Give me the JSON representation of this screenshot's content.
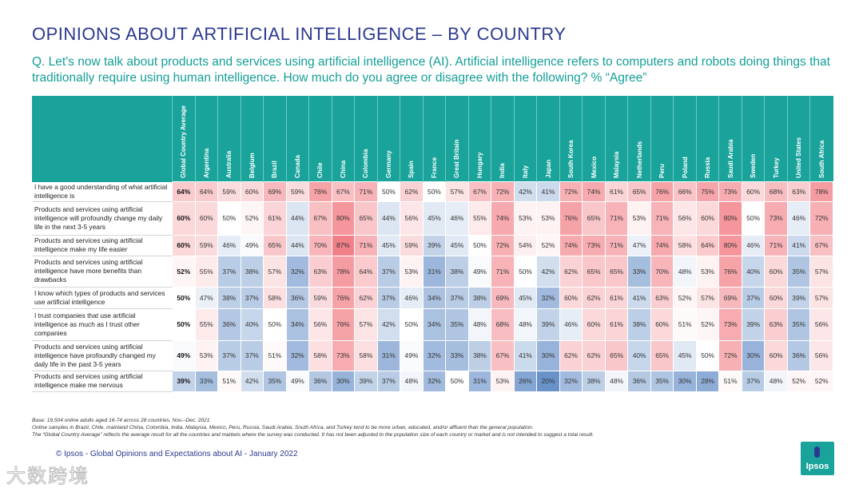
{
  "title": "OPINIONS ABOUT ARTIFICIAL INTELLIGENCE – BY COUNTRY",
  "question": "Q. Let's now talk about products and services using artificial intelligence (AI). Artificial intelligence refers to computers and robots doing things that traditionally require using human intelligence. How much do you agree or disagree with the following? % “Agree”",
  "columns": [
    "Global Country Average",
    "Argentina",
    "Australia",
    "Belgium",
    "Brazil",
    "Canada",
    "Chile",
    "China",
    "Colombia",
    "Germany",
    "Spain",
    "France",
    "Great Britain",
    "Hungary",
    "India",
    "Italy",
    "Japan",
    "South Korea",
    "Mexico",
    "Malaysia",
    "Netherlands",
    "Peru",
    "Poland",
    "Russia",
    "Saudi Arabia",
    "Sweden",
    "Turkey",
    "United States",
    "South Africa"
  ],
  "rows": [
    {
      "label": "I have a good understanding of what artificial intelligence is",
      "values": [
        64,
        64,
        59,
        60,
        69,
        59,
        76,
        67,
        71,
        50,
        62,
        50,
        57,
        67,
        72,
        42,
        41,
        72,
        74,
        61,
        65,
        76,
        66,
        75,
        73,
        60,
        68,
        63,
        78
      ]
    },
    {
      "label": "Products and services using artificial intelligence will profoundly change my daily life in the next 3-5 years",
      "values": [
        60,
        60,
        50,
        52,
        61,
        44,
        67,
        80,
        65,
        44,
        56,
        45,
        46,
        55,
        74,
        53,
        53,
        76,
        65,
        71,
        53,
        71,
        56,
        60,
        80,
        50,
        73,
        46,
        72
      ]
    },
    {
      "label": "Products and services using artificial intelligence make my life easier",
      "values": [
        60,
        59,
        46,
        49,
        65,
        44,
        70,
        87,
        71,
        45,
        59,
        39,
        45,
        50,
        72,
        54,
        52,
        74,
        73,
        71,
        47,
        74,
        58,
        64,
        80,
        46,
        71,
        41,
        67
      ]
    },
    {
      "label": "Products and services using artificial intelligence have more benefits than drawbacks",
      "values": [
        52,
        55,
        37,
        38,
        57,
        32,
        63,
        78,
        64,
        37,
        53,
        31,
        38,
        49,
        71,
        50,
        42,
        62,
        65,
        65,
        33,
        70,
        48,
        53,
        76,
        40,
        60,
        35,
        57
      ]
    },
    {
      "label": "I know which types of products and services use artificial intelligence",
      "values": [
        50,
        47,
        38,
        37,
        58,
        36,
        59,
        76,
        62,
        37,
        46,
        34,
        37,
        38,
        69,
        45,
        32,
        60,
        62,
        61,
        41,
        63,
        52,
        57,
        69,
        37,
        60,
        39,
        57
      ]
    },
    {
      "label": "I trust companies that use artificial intelligence as much as I trust other companies",
      "values": [
        50,
        55,
        36,
        40,
        50,
        34,
        56,
        76,
        57,
        42,
        50,
        34,
        35,
        48,
        68,
        48,
        39,
        46,
        60,
        61,
        38,
        60,
        51,
        52,
        73,
        39,
        63,
        35,
        56
      ]
    },
    {
      "label": "Products and services using artificial intelligence have profoundly changed my daily life in the past 3-5 years",
      "values": [
        49,
        53,
        37,
        37,
        51,
        32,
        58,
        73,
        58,
        31,
        49,
        32,
        33,
        38,
        67,
        41,
        30,
        62,
        62,
        65,
        40,
        65,
        45,
        50,
        72,
        30,
        60,
        36,
        56
      ]
    },
    {
      "label": "Products and services using artificial intelligence make me nervous",
      "values": [
        39,
        33,
        51,
        42,
        35,
        49,
        36,
        30,
        39,
        37,
        48,
        32,
        50,
        31,
        53,
        26,
        20,
        32,
        38,
        48,
        36,
        35,
        30,
        28,
        51,
        37,
        48,
        52,
        52
      ]
    }
  ],
  "notes": [
    "Base: 19,504 online adults aged 16-74 across 28 countries, Nov.–Dec. 2021",
    "Online samples in Brazil, Chile, mainland China, Colombia, India, Malaysia, Mexico, Peru, Russia, Saudi Arabia, South Africa, and Turkey tend to be more urban, educated, and/or affluent than the general population.",
    "The “Global  Country Average” reflects the average result for all the countries and markets where the survey was conducted. It has not been adjusted to the population size of each country or market and is not intended to suggest a total result."
  ],
  "copyright": "© Ipsos - Global Opinions and Expectations about AI - January 2022",
  "logo": "Ipsos",
  "watermark": "大数跨境",
  "colors": {
    "header": "#19a39b",
    "high": "#f06a73",
    "low": "#4f7fbf",
    "mid": "#ffffff"
  }
}
